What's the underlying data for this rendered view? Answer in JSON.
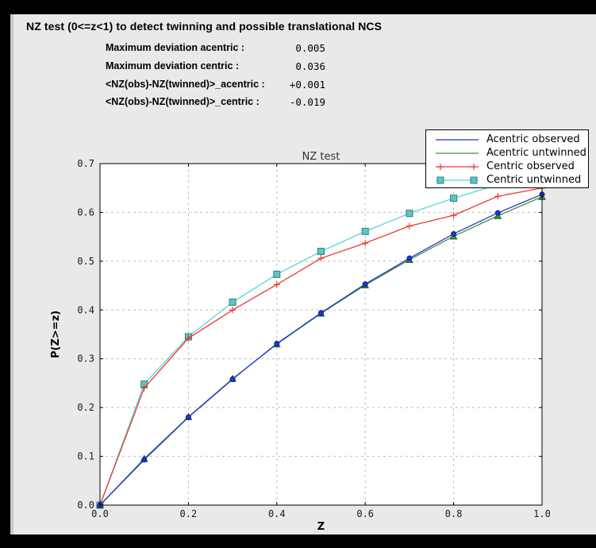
{
  "window": {
    "frame_color": "#000000",
    "panel_color": "#e9e9e9"
  },
  "header": {
    "title": "NZ test (0<=z<1) to detect twinning and possible translational NCS"
  },
  "stats": [
    {
      "label": "Maximum deviation acentric :",
      "value": "0.005"
    },
    {
      "label": "Maximum deviation centric :",
      "value": "0.036"
    },
    {
      "label": "<NZ(obs)-NZ(twinned)>_acentric :",
      "value": "+0.001"
    },
    {
      "label": "<NZ(obs)-NZ(twinned)>_centric :",
      "value": "-0.019"
    }
  ],
  "chart_data": {
    "type": "line",
    "title": "NZ test",
    "xlabel": "Z",
    "ylabel": "P(Z>=z)",
    "xlim": [
      0.0,
      1.0
    ],
    "ylim": [
      0.0,
      0.7
    ],
    "xticks": [
      0.0,
      0.2,
      0.4,
      0.6,
      0.8,
      1.0
    ],
    "xtick_labels": [
      "0.0",
      "0.2",
      "0.4",
      "0.6",
      "0.8",
      "1.0"
    ],
    "yticks": [
      0.0,
      0.1,
      0.2,
      0.3,
      0.4,
      0.5,
      0.6,
      0.7
    ],
    "ytick_labels": [
      "0.0",
      "0.1",
      "0.2",
      "0.3",
      "0.4",
      "0.5",
      "0.6",
      "0.7"
    ],
    "grid": true,
    "grid_color": "#bcbcbc",
    "legend_position": "top-right",
    "x": [
      0.0,
      0.1,
      0.2,
      0.3,
      0.4,
      0.5,
      0.6,
      0.7,
      0.8,
      0.9,
      1.0
    ],
    "series": [
      {
        "name": "Acentric observed",
        "color": "#2235d2",
        "marker": "circle",
        "marker_fill": "#2235d2",
        "marker_edge": "#0d1b8a",
        "legend_marker": false,
        "values": [
          0.0,
          0.093,
          0.18,
          0.258,
          0.331,
          0.394,
          0.453,
          0.506,
          0.556,
          0.599,
          0.637
        ]
      },
      {
        "name": "Acentric untwinned",
        "color": "#3f8f3f",
        "marker": "triangle",
        "marker_fill": "#3f8f3f",
        "marker_edge": "#1e5c1e",
        "legend_marker": false,
        "values": [
          0.0,
          0.095,
          0.181,
          0.259,
          0.33,
          0.393,
          0.451,
          0.503,
          0.551,
          0.593,
          0.632
        ]
      },
      {
        "name": "Centric observed",
        "color": "#ea3b2e",
        "marker": "plus",
        "marker_fill": "#ea3b2e",
        "marker_edge": "#ea3b2e",
        "legend_marker": true,
        "values": [
          0.0,
          0.24,
          0.342,
          0.4,
          0.452,
          0.506,
          0.537,
          0.572,
          0.594,
          0.633,
          0.65
        ]
      },
      {
        "name": "Centric untwinned",
        "color": "#57d7d7",
        "marker": "square",
        "marker_fill": "#5fc4c4",
        "marker_edge": "#2f8080",
        "legend_marker": true,
        "values": [
          0.0,
          0.248,
          0.345,
          0.416,
          0.473,
          0.52,
          0.561,
          0.598,
          0.629,
          0.657,
          0.683
        ]
      }
    ]
  }
}
